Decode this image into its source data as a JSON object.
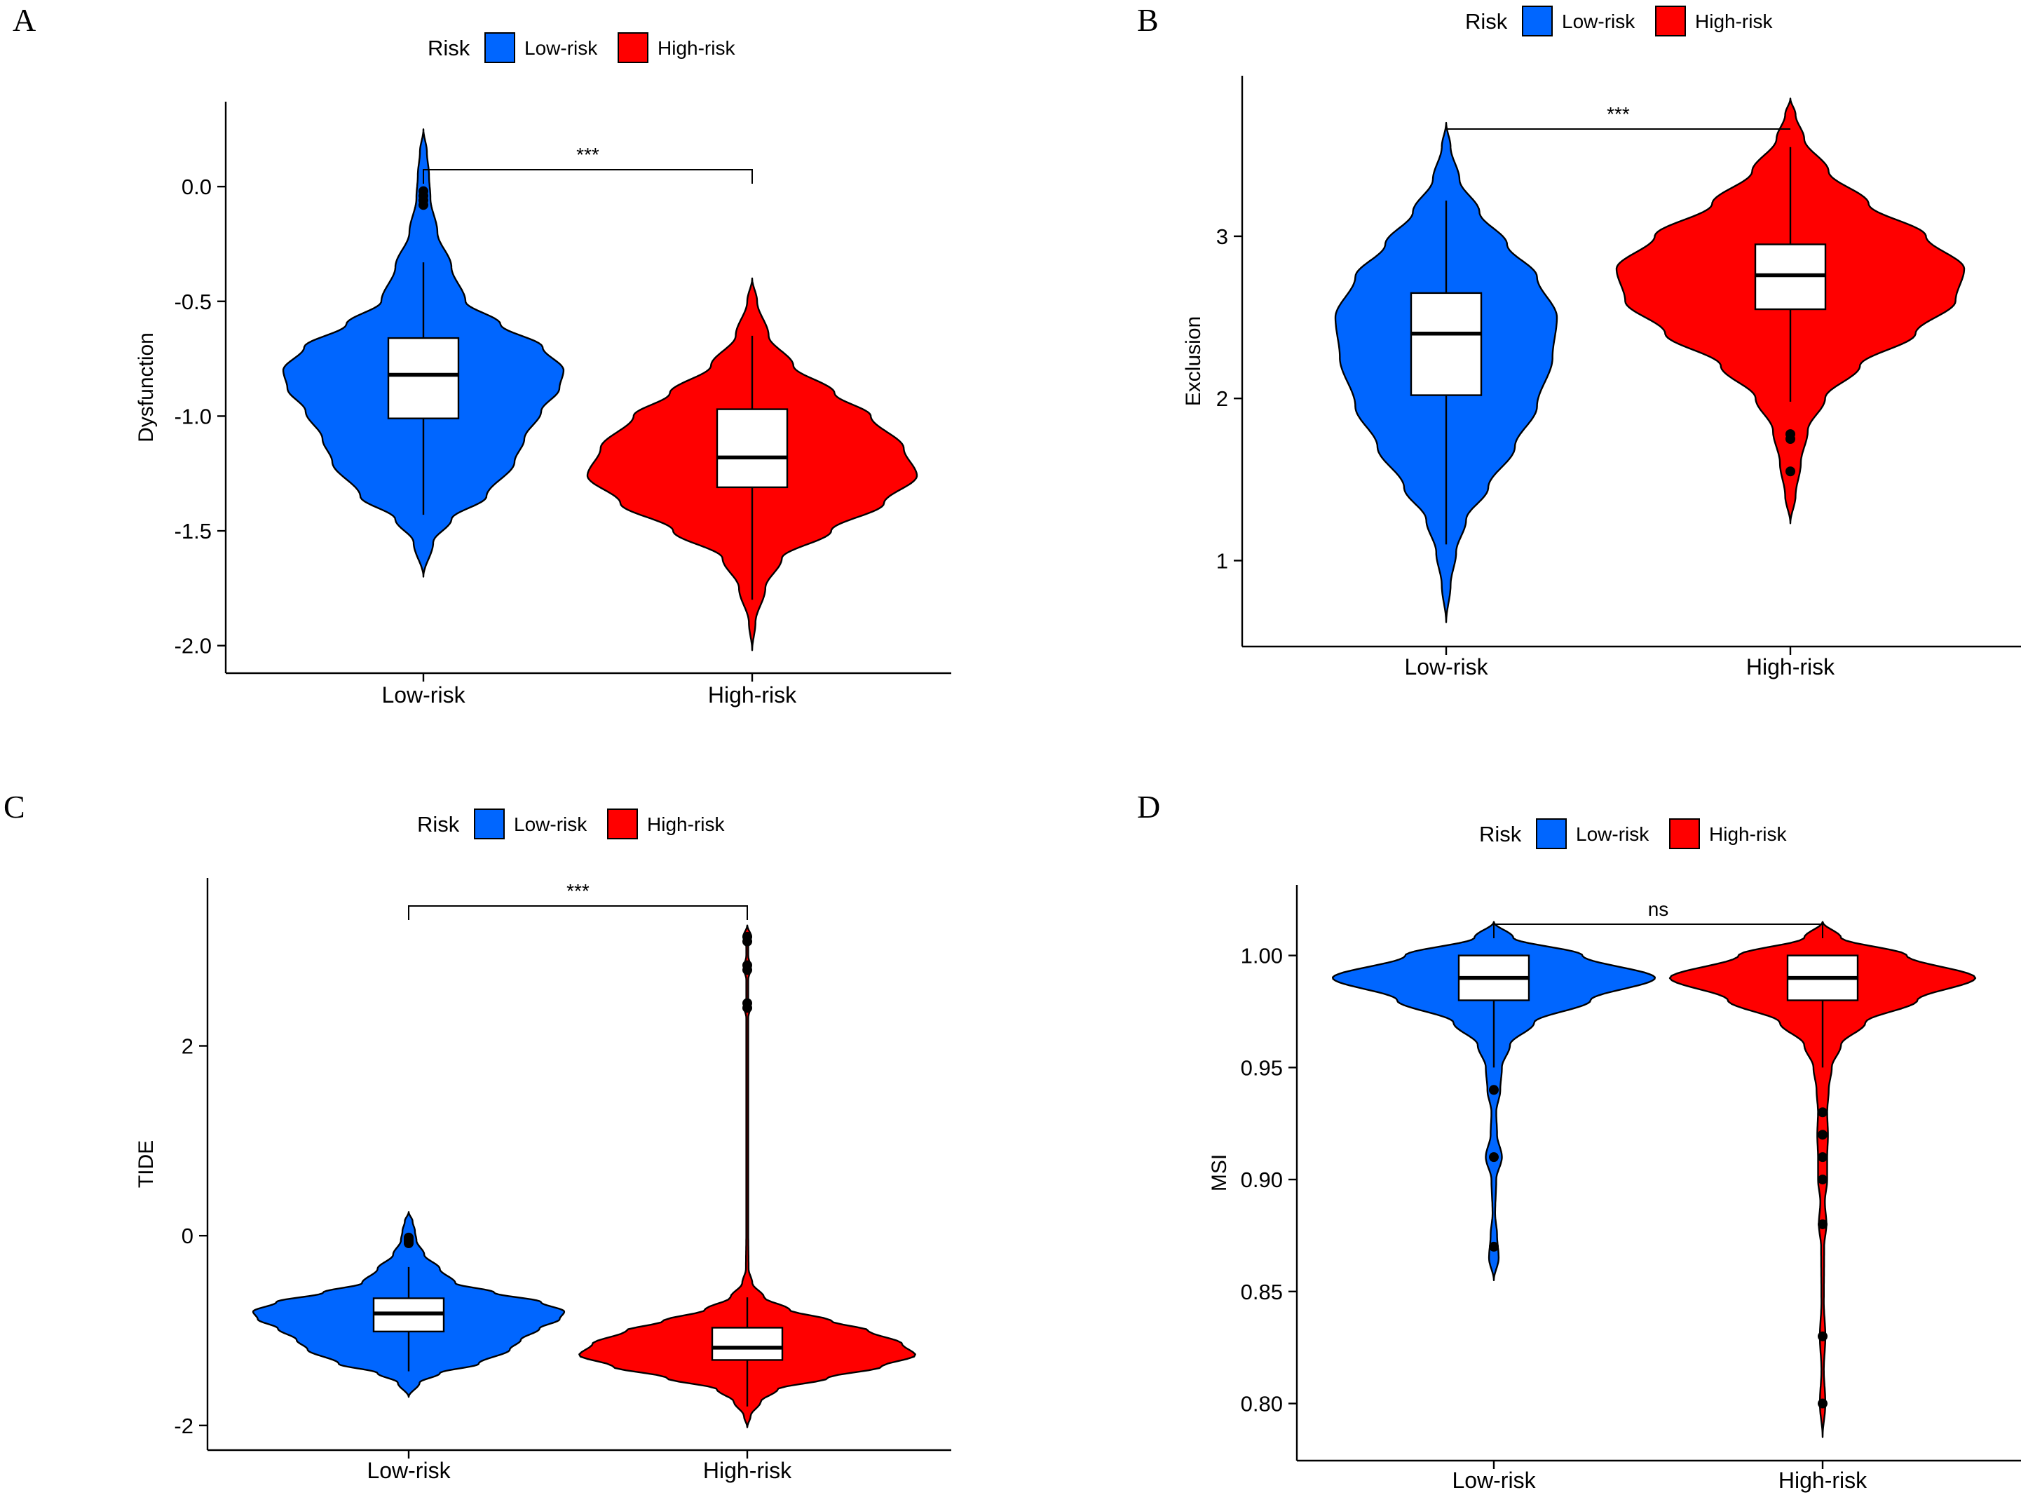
{
  "colors": {
    "low": "#0066FF",
    "high": "#FF0000",
    "box": "#FFFFFF",
    "line": "#000000"
  },
  "chart_data": [
    {
      "type": "violin",
      "panel": "A",
      "legend_title": "Risk",
      "legend_placement": "top",
      "categories": [
        "Low-risk",
        "High-risk"
      ],
      "ylabel": "Dysfunction",
      "ylim": [
        -2.12,
        0.37
      ],
      "yticks": [
        0.0,
        -0.5,
        -1.0,
        -1.5,
        -2.0
      ],
      "yticklabels": [
        "0.0",
        "-0.5",
        "-1.0",
        "-1.5",
        "-2.0"
      ],
      "significance": "***",
      "series": [
        {
          "name": "Low-risk",
          "min": -1.7,
          "max": 0.25,
          "whisker_low": -1.43,
          "whisker_high": -0.33,
          "q1": -1.01,
          "median": -0.82,
          "q3": -0.66,
          "outliers": [
            -0.02,
            -0.04,
            -0.06,
            -0.08
          ],
          "density": [
            [
              -1.7,
              0.0
            ],
            [
              -1.55,
              0.07
            ],
            [
              -1.45,
              0.2
            ],
            [
              -1.35,
              0.45
            ],
            [
              -1.2,
              0.65
            ],
            [
              -1.1,
              0.72
            ],
            [
              -0.98,
              0.84
            ],
            [
              -0.88,
              0.97
            ],
            [
              -0.8,
              1.0
            ],
            [
              -0.7,
              0.85
            ],
            [
              -0.6,
              0.55
            ],
            [
              -0.5,
              0.3
            ],
            [
              -0.35,
              0.2
            ],
            [
              -0.2,
              0.1
            ],
            [
              -0.05,
              0.05
            ],
            [
              0.05,
              0.04
            ],
            [
              0.15,
              0.025
            ],
            [
              0.25,
              0.0
            ]
          ]
        },
        {
          "name": "High-risk",
          "min": -2.02,
          "max": -0.4,
          "whisker_low": -1.8,
          "whisker_high": -0.65,
          "q1": -1.31,
          "median": -1.18,
          "q3": -0.97,
          "outliers": [],
          "density": [
            [
              -2.02,
              0.0
            ],
            [
              -1.9,
              0.02
            ],
            [
              -1.75,
              0.08
            ],
            [
              -1.62,
              0.18
            ],
            [
              -1.5,
              0.48
            ],
            [
              -1.38,
              0.8
            ],
            [
              -1.26,
              1.0
            ],
            [
              -1.14,
              0.92
            ],
            [
              -1.0,
              0.72
            ],
            [
              -0.9,
              0.5
            ],
            [
              -0.78,
              0.25
            ],
            [
              -0.65,
              0.1
            ],
            [
              -0.5,
              0.03
            ],
            [
              -0.4,
              0.0
            ]
          ]
        }
      ]
    },
    {
      "type": "violin",
      "panel": "B",
      "legend_title": "Risk",
      "legend_placement": "top",
      "categories": [
        "Low-risk",
        "High-risk"
      ],
      "ylabel": "Exclusion",
      "ylim": [
        0.47,
        3.99
      ],
      "yticks": [
        1,
        2,
        3
      ],
      "yticklabels": [
        "1",
        "2",
        "3"
      ],
      "significance": "***",
      "series": [
        {
          "name": "Low-risk",
          "min": 0.62,
          "max": 3.7,
          "whisker_low": 1.1,
          "whisker_high": 3.22,
          "q1": 2.02,
          "median": 2.4,
          "q3": 2.65,
          "outliers": [],
          "density": [
            [
              0.62,
              0.0
            ],
            [
              0.85,
              0.04
            ],
            [
              1.05,
              0.09
            ],
            [
              1.25,
              0.18
            ],
            [
              1.45,
              0.38
            ],
            [
              1.7,
              0.62
            ],
            [
              1.95,
              0.82
            ],
            [
              2.25,
              0.96
            ],
            [
              2.5,
              1.0
            ],
            [
              2.75,
              0.82
            ],
            [
              2.95,
              0.55
            ],
            [
              3.15,
              0.3
            ],
            [
              3.35,
              0.12
            ],
            [
              3.55,
              0.04
            ],
            [
              3.7,
              0.0
            ]
          ]
        },
        {
          "name": "High-risk",
          "min": 1.23,
          "max": 3.85,
          "whisker_low": 1.98,
          "whisker_high": 3.55,
          "q1": 2.55,
          "median": 2.76,
          "q3": 2.95,
          "outliers": [
            1.78,
            1.75,
            1.55
          ],
          "density": [
            [
              1.23,
              0.0
            ],
            [
              1.4,
              0.03
            ],
            [
              1.6,
              0.06
            ],
            [
              1.8,
              0.1
            ],
            [
              2.0,
              0.2
            ],
            [
              2.2,
              0.4
            ],
            [
              2.4,
              0.72
            ],
            [
              2.6,
              0.95
            ],
            [
              2.8,
              1.0
            ],
            [
              3.0,
              0.78
            ],
            [
              3.2,
              0.45
            ],
            [
              3.4,
              0.22
            ],
            [
              3.6,
              0.08
            ],
            [
              3.75,
              0.03
            ],
            [
              3.85,
              0.0
            ]
          ]
        }
      ]
    },
    {
      "type": "violin",
      "panel": "C",
      "legend_title": "Risk",
      "legend_placement": "top",
      "categories": [
        "Low-risk",
        "High-risk"
      ],
      "ylabel": "TIDE",
      "ylim": [
        -2.26,
        3.77
      ],
      "yticks": [
        2,
        0,
        -2
      ],
      "yticklabels": [
        "2",
        "0",
        "-2"
      ],
      "significance": "***",
      "series": [
        {
          "name": "Low-risk",
          "min": -1.7,
          "max": 0.25,
          "whisker_low": -1.43,
          "whisker_high": -0.33,
          "q1": -1.01,
          "median": -0.82,
          "q3": -0.66,
          "outliers": [
            -0.02,
            -0.04,
            -0.06,
            -0.08
          ],
          "density": [
            [
              -1.7,
              0.0
            ],
            [
              -1.55,
              0.07
            ],
            [
              -1.45,
              0.2
            ],
            [
              -1.35,
              0.45
            ],
            [
              -1.2,
              0.65
            ],
            [
              -1.1,
              0.72
            ],
            [
              -0.98,
              0.84
            ],
            [
              -0.88,
              0.97
            ],
            [
              -0.8,
              1.0
            ],
            [
              -0.7,
              0.85
            ],
            [
              -0.6,
              0.55
            ],
            [
              -0.5,
              0.3
            ],
            [
              -0.35,
              0.2
            ],
            [
              -0.2,
              0.1
            ],
            [
              -0.05,
              0.05
            ],
            [
              0.05,
              0.04
            ],
            [
              0.15,
              0.025
            ],
            [
              0.25,
              0.0
            ]
          ]
        },
        {
          "name": "High-risk",
          "min": -2.02,
          "max": 3.27,
          "whisker_low": -1.8,
          "whisker_high": -0.65,
          "q1": -1.31,
          "median": -1.18,
          "q3": -0.97,
          "outliers": [
            3.15,
            3.1,
            2.85,
            2.8,
            2.45,
            2.4
          ],
          "density": [
            [
              -2.02,
              0.0
            ],
            [
              -1.9,
              0.02
            ],
            [
              -1.75,
              0.08
            ],
            [
              -1.62,
              0.18
            ],
            [
              -1.5,
              0.48
            ],
            [
              -1.38,
              0.8
            ],
            [
              -1.26,
              1.0
            ],
            [
              -1.14,
              0.92
            ],
            [
              -1.0,
              0.72
            ],
            [
              -0.9,
              0.5
            ],
            [
              -0.78,
              0.25
            ],
            [
              -0.65,
              0.1
            ],
            [
              -0.5,
              0.03
            ],
            [
              -0.35,
              0.008
            ],
            [
              0.0,
              0.006
            ],
            [
              2.3,
              0.006
            ],
            [
              2.4,
              0.018
            ],
            [
              2.5,
              0.006
            ],
            [
              2.7,
              0.006
            ],
            [
              2.82,
              0.022
            ],
            [
              2.95,
              0.006
            ],
            [
              3.05,
              0.006
            ],
            [
              3.15,
              0.024
            ],
            [
              3.27,
              0.0
            ]
          ]
        }
      ]
    },
    {
      "type": "violin",
      "panel": "D",
      "legend_title": "Risk",
      "legend_placement": "top",
      "categories": [
        "Low-risk",
        "High-risk"
      ],
      "ylabel": "MSI",
      "ylim": [
        0.7745,
        1.0315
      ],
      "yticks": [
        1.0,
        0.95,
        0.9,
        0.85,
        0.8
      ],
      "yticklabels": [
        "1.00",
        "0.95",
        "0.90",
        "0.85",
        "0.80"
      ],
      "significance": "ns",
      "series": [
        {
          "name": "Low-risk",
          "min": 0.855,
          "max": 1.015,
          "whisker_low": 0.95,
          "whisker_high": 1.0,
          "q1": 0.98,
          "median": 0.99,
          "q3": 1.0,
          "outliers": [
            0.94,
            0.91,
            0.87
          ],
          "density": [
            [
              0.855,
              0.0
            ],
            [
              0.865,
              0.03
            ],
            [
              0.875,
              0.02
            ],
            [
              0.885,
              0.008
            ],
            [
              0.9,
              0.015
            ],
            [
              0.91,
              0.05
            ],
            [
              0.92,
              0.02
            ],
            [
              0.93,
              0.015
            ],
            [
              0.94,
              0.04
            ],
            [
              0.95,
              0.05
            ],
            [
              0.96,
              0.1
            ],
            [
              0.97,
              0.25
            ],
            [
              0.98,
              0.6
            ],
            [
              0.99,
              1.0
            ],
            [
              1.0,
              0.55
            ],
            [
              1.008,
              0.12
            ],
            [
              1.015,
              0.0
            ]
          ]
        },
        {
          "name": "High-risk",
          "min": 0.785,
          "max": 1.015,
          "whisker_low": 0.95,
          "whisker_high": 1.0,
          "q1": 0.98,
          "median": 0.99,
          "q3": 1.0,
          "outliers": [
            0.93,
            0.92,
            0.91,
            0.9,
            0.88,
            0.83,
            0.8
          ],
          "density": [
            [
              0.785,
              0.0
            ],
            [
              0.8,
              0.018
            ],
            [
              0.815,
              0.008
            ],
            [
              0.83,
              0.018
            ],
            [
              0.845,
              0.008
            ],
            [
              0.87,
              0.01
            ],
            [
              0.88,
              0.025
            ],
            [
              0.89,
              0.015
            ],
            [
              0.9,
              0.03
            ],
            [
              0.91,
              0.03
            ],
            [
              0.92,
              0.035
            ],
            [
              0.93,
              0.03
            ],
            [
              0.94,
              0.04
            ],
            [
              0.95,
              0.06
            ],
            [
              0.96,
              0.12
            ],
            [
              0.97,
              0.28
            ],
            [
              0.98,
              0.62
            ],
            [
              0.99,
              1.0
            ],
            [
              1.0,
              0.55
            ],
            [
              1.008,
              0.12
            ],
            [
              1.015,
              0.0
            ]
          ]
        }
      ]
    }
  ]
}
